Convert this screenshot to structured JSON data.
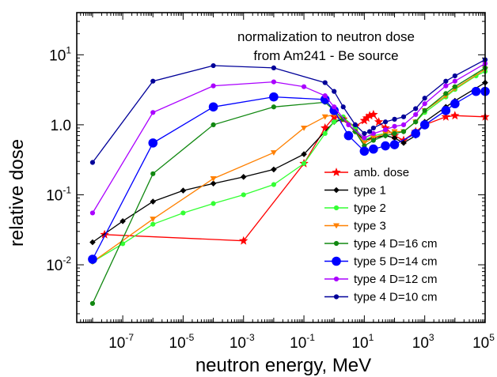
{
  "chart_data": {
    "type": "line",
    "xlabel": "neutron energy, MeV",
    "ylabel": "relative dose",
    "xscale": "log",
    "yscale": "log",
    "xlim": [
      3e-09,
      100000.0
    ],
    "ylim": [
      0.0015,
      40
    ],
    "x_ticks": [
      {
        "base": "10",
        "exp": "-7",
        "value": 1e-07
      },
      {
        "base": "10",
        "exp": "-5",
        "value": 1e-05
      },
      {
        "base": "10",
        "exp": "-3",
        "value": 0.001
      },
      {
        "base": "10",
        "exp": "-1",
        "value": 0.1
      },
      {
        "base": "10",
        "exp": "1",
        "value": 10
      },
      {
        "base": "10",
        "exp": "3",
        "value": 1000
      },
      {
        "base": "10",
        "exp": "5",
        "value": 100000
      }
    ],
    "y_ticks": [
      {
        "base": "10",
        "exp": "-2",
        "value": 0.01
      },
      {
        "base": "10",
        "exp": "-1",
        "value": 0.1
      },
      {
        "base": "",
        "exp": "",
        "label": "1.0",
        "value": 1
      },
      {
        "base": "10",
        "exp": "1",
        "value": 10
      }
    ],
    "annotation": [
      "normalization to neutron dose",
      "from Am241 - Be source"
    ],
    "legend_position": "right",
    "series": [
      {
        "name": "amb. dose",
        "color": "#ff0000",
        "marker": "star",
        "x": [
          2.5e-08,
          0.001,
          0.1,
          0.5,
          1,
          2,
          5,
          10,
          12,
          15,
          20,
          30,
          50,
          100,
          200,
          500,
          1000,
          5000,
          10000,
          100000
        ],
        "y": [
          0.027,
          0.022,
          0.28,
          0.9,
          1.3,
          1.2,
          0.95,
          1.15,
          1.25,
          1.35,
          1.4,
          1.1,
          0.9,
          0.7,
          0.6,
          0.8,
          1.0,
          1.3,
          1.35,
          1.3
        ]
      },
      {
        "name": "type 1",
        "color": "#000000",
        "marker": "diamond",
        "x": [
          1e-08,
          1e-07,
          1e-06,
          1e-05,
          0.0001,
          0.001,
          0.01,
          0.1,
          1,
          2,
          5,
          10,
          20,
          50,
          100,
          200,
          500,
          1000,
          5000,
          10000,
          100000
        ],
        "y": [
          0.021,
          0.042,
          0.08,
          0.115,
          0.145,
          0.18,
          0.23,
          0.38,
          1.1,
          1.2,
          0.8,
          0.6,
          0.65,
          0.7,
          0.65,
          0.55,
          0.7,
          1.1,
          1.8,
          2.2,
          4.0
        ]
      },
      {
        "name": "type 2",
        "color": "#33ff33",
        "marker": "dot",
        "x": [
          1e-08,
          1e-07,
          1e-06,
          1e-05,
          0.0001,
          0.001,
          0.01,
          0.1,
          0.5,
          1,
          2,
          5,
          10,
          20,
          50,
          100,
          200,
          500,
          1000,
          5000,
          10000,
          50000,
          100000
        ],
        "y": [
          0.011,
          0.02,
          0.038,
          0.055,
          0.075,
          0.1,
          0.14,
          0.28,
          0.75,
          1.1,
          1.3,
          0.9,
          0.6,
          0.7,
          0.75,
          0.8,
          0.8,
          1.1,
          1.5,
          2.5,
          3.2,
          5.0,
          5.8
        ]
      },
      {
        "name": "type 3",
        "color": "#ff8000",
        "marker": "triangle",
        "x": [
          1e-08,
          1e-06,
          0.0001,
          0.01,
          0.1,
          0.5,
          1,
          2,
          5,
          10,
          20,
          50,
          100,
          200,
          500,
          1000,
          5000,
          10000,
          100000
        ],
        "y": [
          0.011,
          0.045,
          0.17,
          0.4,
          0.9,
          1.3,
          1.4,
          1.2,
          0.8,
          0.55,
          0.65,
          0.75,
          0.8,
          0.8,
          1.1,
          1.6,
          2.6,
          3.3,
          6.2
        ]
      },
      {
        "name": "type 4 D=16 cm",
        "color": "#118811",
        "marker": "dot",
        "x": [
          1e-08,
          1e-06,
          0.0001,
          0.01,
          0.5,
          1,
          2,
          5,
          10,
          20,
          50,
          100,
          200,
          500,
          1000,
          5000,
          10000,
          100000
        ],
        "y": [
          0.0028,
          0.2,
          1.0,
          1.8,
          2.1,
          1.6,
          1.2,
          0.8,
          0.5,
          0.6,
          0.7,
          0.75,
          0.8,
          1.1,
          1.6,
          2.8,
          3.5,
          6.5
        ]
      },
      {
        "name": "type 5 D=14 cm",
        "color": "#0000ff",
        "marker": "bigdot",
        "x": [
          1e-08,
          1e-06,
          0.0001,
          0.01,
          0.5,
          1,
          3,
          10,
          20,
          50,
          100,
          500,
          1000,
          5000,
          10000,
          50000,
          100000
        ],
        "y": [
          0.012,
          0.55,
          1.8,
          2.5,
          2.3,
          1.6,
          0.7,
          0.42,
          0.45,
          0.5,
          0.52,
          0.75,
          1.0,
          1.6,
          2.0,
          3.0,
          3.0
        ]
      },
      {
        "name": "type 4 D=12 cm",
        "color": "#aa00ff",
        "marker": "dot",
        "x": [
          1e-08,
          1e-06,
          0.0001,
          0.01,
          0.1,
          0.5,
          1,
          3,
          10,
          20,
          50,
          100,
          200,
          500,
          1000,
          5000,
          10000,
          100000
        ],
        "y": [
          0.055,
          1.5,
          3.6,
          4.1,
          3.5,
          2.6,
          1.8,
          1.0,
          0.65,
          0.75,
          0.85,
          0.95,
          1.0,
          1.4,
          2.0,
          3.6,
          4.2,
          7.5
        ]
      },
      {
        "name": "type 4 D=10 cm",
        "color": "#000099",
        "marker": "dot",
        "x": [
          1e-08,
          1e-06,
          0.0001,
          0.01,
          0.5,
          1,
          2,
          5,
          10,
          15,
          20,
          50,
          100,
          200,
          500,
          1000,
          5000,
          10000,
          100000
        ],
        "y": [
          0.29,
          4.2,
          7.0,
          6.5,
          4.0,
          3.0,
          1.8,
          1.0,
          0.75,
          0.8,
          0.9,
          1.1,
          1.2,
          1.3,
          1.7,
          2.4,
          4.2,
          5.0,
          8.5
        ]
      }
    ]
  }
}
